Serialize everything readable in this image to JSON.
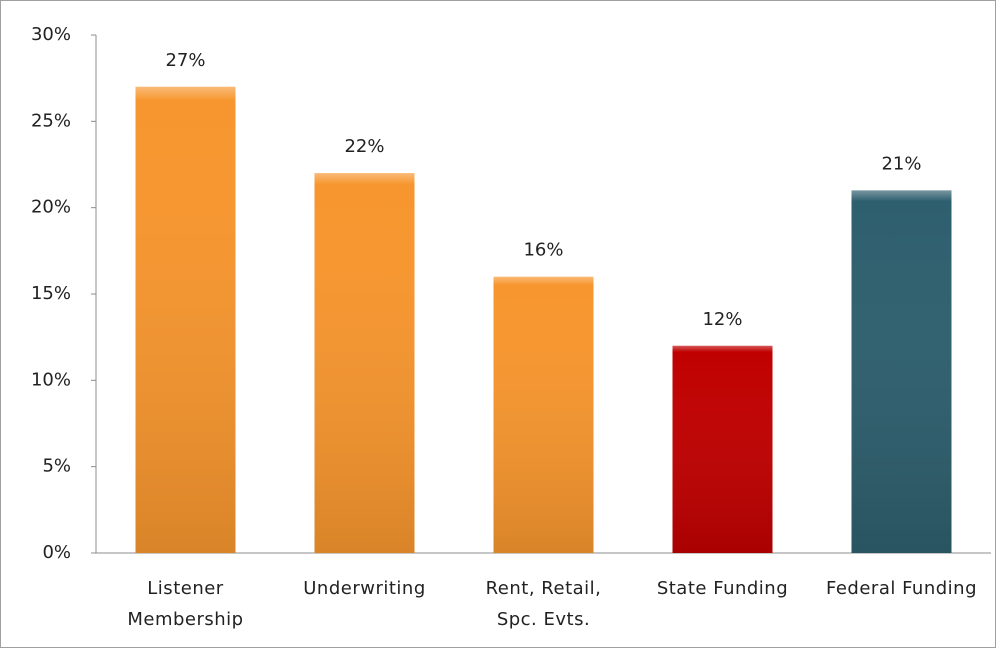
{
  "chart_data": {
    "type": "bar",
    "categories": [
      "Listener Membership",
      "Underwriting",
      "Rent, Retail, Spc. Evts.",
      "State Funding",
      "Federal Funding"
    ],
    "values": [
      27,
      22,
      16,
      12,
      21
    ],
    "value_labels": [
      "27%",
      "22%",
      "16%",
      "12%",
      "21%"
    ],
    "colors": [
      "#f7962e",
      "#f7962e",
      "#f7962e",
      "#c00000",
      "#2e5f6e"
    ],
    "ylim": [
      0,
      30
    ],
    "yticks": [
      {
        "value": 0,
        "label": "0%"
      },
      {
        "value": 5,
        "label": "5%"
      },
      {
        "value": 10,
        "label": "10%"
      },
      {
        "value": 15,
        "label": "15%"
      },
      {
        "value": 20,
        "label": "20%"
      },
      {
        "value": 25,
        "label": "25%"
      },
      {
        "value": 30,
        "label": "30%"
      }
    ],
    "grid": false
  }
}
